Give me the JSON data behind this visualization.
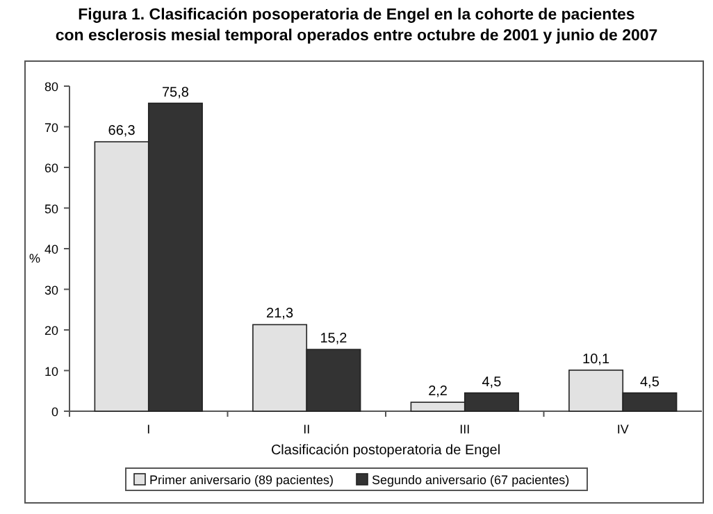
{
  "chart_data": {
    "type": "bar",
    "title": "Figura 1. Clasificación posoperatoria de Engel en la cohorte de pacientes\ncon esclerosis mesial temporal operados entre octubre de 2001 y junio de 2007",
    "xlabel": "Clasificación postoperatoria de Engel",
    "ylabel": "%",
    "categories": [
      "I",
      "II",
      "III",
      "IV"
    ],
    "series": [
      {
        "name": "Primer aniversario (89 pacientes)",
        "color": "#e2e2e2",
        "values": [
          66.3,
          21.3,
          2.2,
          10.1
        ],
        "value_labels": [
          "66,3",
          "21,3",
          "2,2",
          "10,1"
        ]
      },
      {
        "name": "Segundo aniversario (67 pacientes)",
        "color": "#333333",
        "values": [
          75.8,
          15.2,
          4.5,
          4.5
        ],
        "value_labels": [
          "75,8",
          "15,2",
          "4,5",
          "4,5"
        ]
      }
    ],
    "ylim": [
      0,
      80
    ],
    "yticks": [
      0,
      10,
      20,
      30,
      40,
      50,
      60,
      70,
      80
    ],
    "legend": "bottom"
  }
}
